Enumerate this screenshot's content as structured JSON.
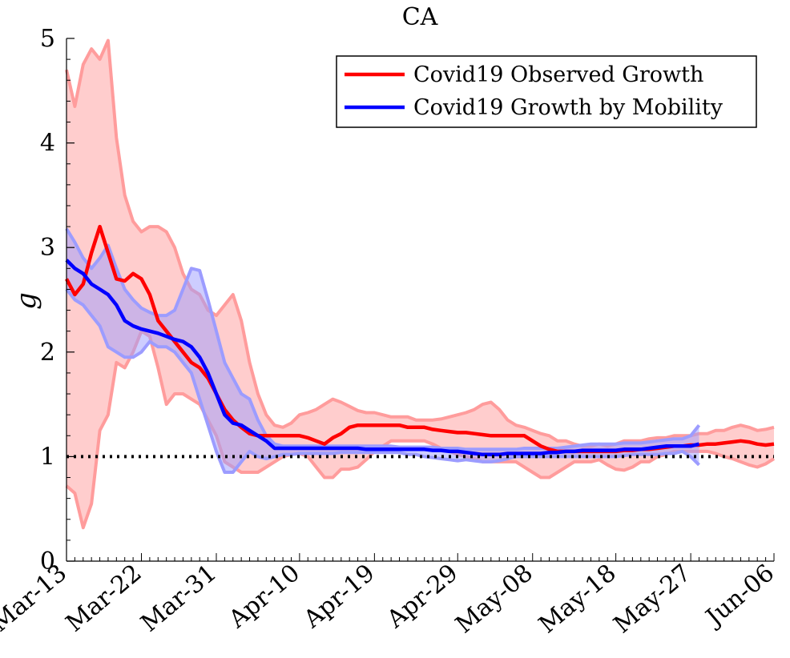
{
  "chart_data": {
    "type": "line",
    "title": "CA",
    "xlabel": "",
    "ylabel": "g",
    "ylim": [
      0,
      5
    ],
    "yticks": [
      0,
      1,
      2,
      3,
      4,
      5
    ],
    "xrange_day": [
      0,
      85
    ],
    "xticks": [
      {
        "day": 0,
        "label": "Mar-13"
      },
      {
        "day": 9,
        "label": "Mar-22"
      },
      {
        "day": 18,
        "label": "Mar-31"
      },
      {
        "day": 28,
        "label": "Apr-10"
      },
      {
        "day": 37,
        "label": "Apr-19"
      },
      {
        "day": 47,
        "label": "Apr-29"
      },
      {
        "day": 56,
        "label": "May-08"
      },
      {
        "day": 66,
        "label": "May-18"
      },
      {
        "day": 75,
        "label": "May-27"
      },
      {
        "day": 85,
        "label": "Jun-06"
      }
    ],
    "reference_line": {
      "y": 1,
      "style": "dotted",
      "color": "#000000"
    },
    "legend": {
      "position": "top-right",
      "entries": [
        "Covid19 Observed Growth",
        "Covid19 Growth by Mobility"
      ]
    },
    "series": [
      {
        "name": "Covid19 Observed Growth",
        "color": "#ff0000",
        "band_color": "#ff9c9c",
        "x": [
          0,
          1,
          2,
          3,
          4,
          5,
          6,
          7,
          8,
          9,
          10,
          11,
          12,
          13,
          14,
          15,
          16,
          17,
          18,
          19,
          20,
          21,
          22,
          23,
          24,
          25,
          26,
          27,
          28,
          29,
          30,
          31,
          32,
          33,
          34,
          35,
          36,
          37,
          38,
          39,
          40,
          41,
          42,
          43,
          44,
          45,
          46,
          47,
          48,
          49,
          50,
          51,
          52,
          53,
          54,
          55,
          56,
          57,
          58,
          59,
          60,
          61,
          62,
          63,
          64,
          65,
          66,
          67,
          68,
          69,
          70,
          71,
          72,
          73,
          74,
          75,
          76,
          77,
          78,
          79,
          80,
          81,
          82,
          83,
          84,
          85
        ],
        "values": [
          2.7,
          2.55,
          2.65,
          2.95,
          3.2,
          2.95,
          2.7,
          2.68,
          2.75,
          2.7,
          2.55,
          2.3,
          2.2,
          2.1,
          2.0,
          1.9,
          1.85,
          1.75,
          1.6,
          1.45,
          1.35,
          1.28,
          1.22,
          1.2,
          1.2,
          1.2,
          1.2,
          1.2,
          1.2,
          1.18,
          1.15,
          1.12,
          1.18,
          1.22,
          1.28,
          1.3,
          1.3,
          1.3,
          1.3,
          1.3,
          1.3,
          1.28,
          1.28,
          1.28,
          1.26,
          1.25,
          1.24,
          1.23,
          1.23,
          1.22,
          1.21,
          1.2,
          1.2,
          1.2,
          1.2,
          1.2,
          1.15,
          1.1,
          1.07,
          1.05,
          1.05,
          1.05,
          1.05,
          1.05,
          1.05,
          1.05,
          1.05,
          1.06,
          1.06,
          1.07,
          1.07,
          1.08,
          1.09,
          1.1,
          1.1,
          1.11,
          1.11,
          1.12,
          1.12,
          1.13,
          1.14,
          1.15,
          1.14,
          1.12,
          1.11,
          1.12
        ],
        "lower": [
          0.72,
          0.65,
          0.32,
          0.55,
          1.25,
          1.4,
          1.9,
          1.85,
          2.0,
          2.2,
          2.15,
          1.85,
          1.5,
          1.6,
          1.6,
          1.55,
          1.5,
          1.35,
          1.2,
          0.95,
          0.9,
          0.85,
          0.85,
          0.85,
          0.9,
          0.95,
          1.0,
          1.02,
          1.03,
          1.0,
          0.9,
          0.8,
          0.8,
          0.88,
          0.88,
          0.9,
          0.97,
          1.05,
          1.1,
          1.15,
          1.15,
          1.15,
          1.15,
          1.15,
          1.12,
          1.08,
          1.05,
          1.02,
          1.0,
          0.98,
          0.95,
          0.95,
          0.95,
          0.95,
          0.95,
          0.9,
          0.85,
          0.8,
          0.8,
          0.85,
          0.9,
          0.95,
          0.95,
          0.95,
          0.97,
          0.92,
          0.88,
          0.87,
          0.9,
          0.95,
          0.95,
          1.0,
          1.02,
          1.05,
          1.05,
          1.05,
          1.05,
          1.05,
          1.03,
          1.0,
          0.98,
          0.95,
          0.92,
          0.9,
          0.93,
          0.98
        ],
        "upper": [
          4.7,
          4.35,
          4.75,
          4.9,
          4.8,
          4.98,
          4.05,
          3.5,
          3.25,
          3.15,
          3.2,
          3.2,
          3.15,
          3.0,
          2.75,
          2.6,
          2.55,
          2.4,
          2.35,
          2.45,
          2.55,
          2.3,
          1.9,
          1.6,
          1.4,
          1.3,
          1.28,
          1.32,
          1.4,
          1.42,
          1.45,
          1.5,
          1.55,
          1.52,
          1.48,
          1.44,
          1.42,
          1.42,
          1.4,
          1.38,
          1.38,
          1.38,
          1.35,
          1.35,
          1.35,
          1.36,
          1.38,
          1.4,
          1.42,
          1.45,
          1.5,
          1.52,
          1.45,
          1.35,
          1.3,
          1.28,
          1.25,
          1.22,
          1.2,
          1.15,
          1.15,
          1.12,
          1.1,
          1.1,
          1.12,
          1.1,
          1.12,
          1.15,
          1.15,
          1.15,
          1.17,
          1.18,
          1.18,
          1.2,
          1.2,
          1.2,
          1.22,
          1.22,
          1.25,
          1.25,
          1.28,
          1.3,
          1.28,
          1.25,
          1.26,
          1.28
        ]
      },
      {
        "name": "Covid19 Growth by Mobility",
        "color": "#0000ff",
        "band_color": "#9c9cff",
        "x": [
          0,
          1,
          2,
          3,
          4,
          5,
          6,
          7,
          8,
          9,
          10,
          11,
          12,
          13,
          14,
          15,
          16,
          17,
          18,
          19,
          20,
          21,
          22,
          23,
          24,
          25,
          26,
          27,
          28,
          29,
          30,
          31,
          32,
          33,
          34,
          35,
          36,
          37,
          38,
          39,
          40,
          41,
          42,
          43,
          44,
          45,
          46,
          47,
          48,
          49,
          50,
          51,
          52,
          53,
          54,
          55,
          56,
          57,
          58,
          59,
          60,
          61,
          62,
          63,
          64,
          65,
          66,
          67,
          68,
          69,
          70,
          71,
          72,
          73,
          74,
          75,
          76
        ],
        "values": [
          2.88,
          2.8,
          2.75,
          2.65,
          2.6,
          2.55,
          2.45,
          2.3,
          2.25,
          2.22,
          2.2,
          2.18,
          2.15,
          2.12,
          2.1,
          2.05,
          1.95,
          1.8,
          1.6,
          1.4,
          1.32,
          1.3,
          1.25,
          1.2,
          1.15,
          1.08,
          1.08,
          1.08,
          1.08,
          1.08,
          1.08,
          1.08,
          1.08,
          1.08,
          1.08,
          1.08,
          1.07,
          1.07,
          1.07,
          1.07,
          1.07,
          1.07,
          1.07,
          1.07,
          1.06,
          1.06,
          1.05,
          1.05,
          1.04,
          1.03,
          1.02,
          1.02,
          1.02,
          1.03,
          1.03,
          1.03,
          1.03,
          1.03,
          1.04,
          1.04,
          1.05,
          1.05,
          1.06,
          1.06,
          1.06,
          1.06,
          1.06,
          1.07,
          1.07,
          1.07,
          1.08,
          1.09,
          1.1,
          1.1,
          1.1,
          1.1,
          1.12
        ],
        "lower": [
          2.6,
          2.5,
          2.45,
          2.35,
          2.25,
          2.05,
          2.0,
          1.95,
          1.95,
          2.0,
          2.1,
          2.05,
          2.05,
          2.0,
          1.9,
          1.8,
          1.55,
          1.3,
          1.05,
          0.85,
          0.85,
          0.95,
          1.05,
          1.0,
          0.98,
          1.0,
          1.02,
          1.02,
          1.03,
          1.03,
          1.03,
          1.03,
          1.03,
          1.04,
          1.04,
          1.04,
          1.04,
          1.04,
          1.04,
          1.04,
          1.04,
          1.02,
          1.02,
          1.0,
          0.99,
          0.98,
          0.97,
          0.96,
          0.97,
          0.96,
          0.95,
          0.95,
          0.96,
          0.98,
          1.0,
          1.0,
          1.0,
          1.0,
          1.0,
          1.0,
          1.0,
          1.0,
          1.0,
          1.0,
          1.0,
          1.0,
          1.0,
          1.01,
          1.02,
          1.02,
          1.02,
          1.02,
          1.03,
          1.03,
          1.05,
          1.0,
          0.92
        ],
        "upper": [
          3.18,
          3.05,
          2.9,
          2.8,
          2.9,
          3.02,
          2.8,
          2.6,
          2.5,
          2.42,
          2.38,
          2.35,
          2.35,
          2.4,
          2.6,
          2.8,
          2.78,
          2.5,
          2.2,
          1.9,
          1.75,
          1.6,
          1.55,
          1.35,
          1.2,
          1.12,
          1.1,
          1.1,
          1.1,
          1.1,
          1.1,
          1.1,
          1.1,
          1.1,
          1.1,
          1.1,
          1.1,
          1.1,
          1.1,
          1.1,
          1.09,
          1.09,
          1.09,
          1.09,
          1.09,
          1.08,
          1.08,
          1.08,
          1.07,
          1.07,
          1.07,
          1.07,
          1.07,
          1.07,
          1.07,
          1.08,
          1.08,
          1.08,
          1.08,
          1.08,
          1.09,
          1.1,
          1.11,
          1.12,
          1.12,
          1.12,
          1.12,
          1.13,
          1.13,
          1.13,
          1.14,
          1.15,
          1.16,
          1.17,
          1.17,
          1.2,
          1.3
        ]
      }
    ]
  }
}
